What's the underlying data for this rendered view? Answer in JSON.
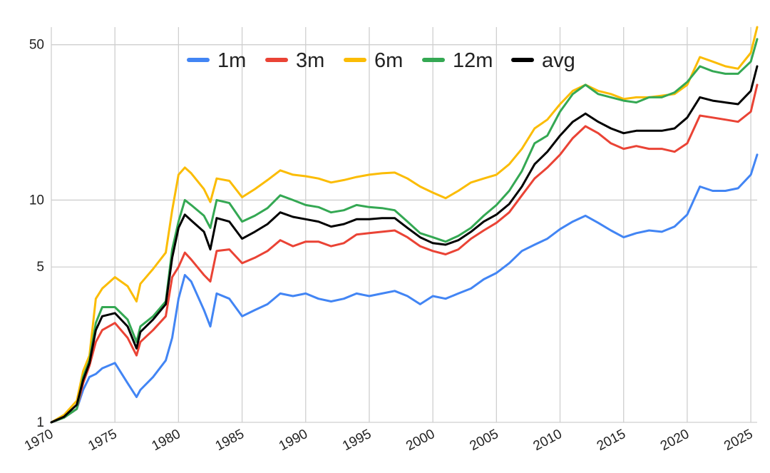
{
  "chart_data": {
    "type": "line",
    "title": "",
    "xlabel": "",
    "ylabel": "",
    "y_scale": "log",
    "xlim": [
      1970,
      2025.5
    ],
    "ylim": [
      1,
      60
    ],
    "x_ticks": [
      1970,
      1975,
      1980,
      1985,
      1990,
      1995,
      2000,
      2005,
      2010,
      2015,
      2020,
      2025
    ],
    "x_tick_labels": [
      "1970",
      "1975",
      "1980",
      "1985",
      "1990",
      "1995",
      "2000",
      "2005",
      "2010",
      "2015",
      "2020",
      "2025"
    ],
    "y_ticks": [
      1,
      5,
      10,
      50
    ],
    "y_tick_labels": [
      "1",
      "5",
      "10",
      "50"
    ],
    "grid": true,
    "legend_position": "top-center",
    "x": [
      1970,
      1971,
      1972,
      1972.5,
      1973,
      1973.5,
      1974,
      1975,
      1976,
      1976.7,
      1977,
      1978,
      1979,
      1979.5,
      1980,
      1980.5,
      1981,
      1982,
      1982.5,
      1983,
      1984,
      1985,
      1986,
      1987,
      1988,
      1989,
      1990,
      1991,
      1992,
      1993,
      1994,
      1995,
      1996,
      1997,
      1998,
      1999,
      2000,
      2001,
      2002,
      2003,
      2004,
      2005,
      2006,
      2007,
      2008,
      2009,
      2010,
      2011,
      2012,
      2013,
      2014,
      2015,
      2016,
      2017,
      2018,
      2019,
      2020,
      2021,
      2022,
      2023,
      2024,
      2025,
      2025.5
    ],
    "series": [
      {
        "name": "1m",
        "color": "#4285f4",
        "values": [
          1,
          1.05,
          1.15,
          1.4,
          1.6,
          1.65,
          1.75,
          1.85,
          1.5,
          1.3,
          1.4,
          1.6,
          1.9,
          2.4,
          3.6,
          4.6,
          4.3,
          3.2,
          2.7,
          3.8,
          3.6,
          3.0,
          3.2,
          3.4,
          3.8,
          3.7,
          3.8,
          3.6,
          3.5,
          3.6,
          3.8,
          3.7,
          3.8,
          3.9,
          3.7,
          3.4,
          3.7,
          3.6,
          3.8,
          4.0,
          4.4,
          4.7,
          5.2,
          5.9,
          6.3,
          6.7,
          7.4,
          8.0,
          8.5,
          7.9,
          7.3,
          6.8,
          7.1,
          7.3,
          7.2,
          7.6,
          8.6,
          11.5,
          11.0,
          11.0,
          11.3,
          13.0,
          16.0
        ]
      },
      {
        "name": "3m",
        "color": "#ea4335",
        "values": [
          1,
          1.05,
          1.15,
          1.5,
          1.8,
          2.3,
          2.6,
          2.8,
          2.4,
          2.0,
          2.3,
          2.6,
          3.0,
          4.5,
          5.0,
          5.8,
          5.4,
          4.6,
          4.3,
          5.9,
          6.0,
          5.2,
          5.5,
          5.9,
          6.6,
          6.2,
          6.5,
          6.5,
          6.2,
          6.4,
          7.0,
          7.1,
          7.2,
          7.3,
          6.8,
          6.2,
          5.9,
          5.7,
          6.0,
          6.7,
          7.3,
          7.9,
          8.8,
          10.5,
          12.5,
          14.0,
          16.0,
          19.0,
          21.5,
          20.0,
          18.0,
          17.0,
          17.5,
          17.0,
          17.0,
          16.5,
          18.0,
          24.0,
          23.5,
          23.0,
          22.5,
          25.0,
          33.0
        ]
      },
      {
        "name": "6m",
        "color": "#fbbc04",
        "values": [
          1,
          1.08,
          1.25,
          1.7,
          2.0,
          3.6,
          4.0,
          4.5,
          4.1,
          3.5,
          4.2,
          4.9,
          5.8,
          9.0,
          13.0,
          14.0,
          13.2,
          11.2,
          9.8,
          12.5,
          12.2,
          10.3,
          11.2,
          12.3,
          13.6,
          13.0,
          12.8,
          12.5,
          12.0,
          12.3,
          12.7,
          13.0,
          13.2,
          13.3,
          12.5,
          11.5,
          10.8,
          10.2,
          11.0,
          12.0,
          12.5,
          13.0,
          14.5,
          17.0,
          21.0,
          23.0,
          27.0,
          31.0,
          33.0,
          31.0,
          30.0,
          28.5,
          29.0,
          29.0,
          29.5,
          30.0,
          33.0,
          44.0,
          42.0,
          40.0,
          39.0,
          46.0,
          60.0
        ]
      },
      {
        "name": "12m",
        "color": "#34a853",
        "values": [
          1,
          1.05,
          1.15,
          1.6,
          1.9,
          2.8,
          3.3,
          3.3,
          2.9,
          2.3,
          2.7,
          3.0,
          3.5,
          6.0,
          8.0,
          10.0,
          9.5,
          8.5,
          7.5,
          10.0,
          9.7,
          8.0,
          8.5,
          9.2,
          10.5,
          10.0,
          9.5,
          9.3,
          8.8,
          9.0,
          9.5,
          9.3,
          9.2,
          9.0,
          8.0,
          7.1,
          6.8,
          6.5,
          6.9,
          7.5,
          8.5,
          9.5,
          11.0,
          13.5,
          18.0,
          19.5,
          25.0,
          30.0,
          33.0,
          30.0,
          29.0,
          28.0,
          27.5,
          29.0,
          29.0,
          30.5,
          34.0,
          40.0,
          38.0,
          37.0,
          37.0,
          42.0,
          53.0
        ]
      },
      {
        "name": "avg",
        "color": "#000000",
        "values": [
          1,
          1.06,
          1.2,
          1.55,
          1.85,
          2.6,
          3.0,
          3.1,
          2.7,
          2.15,
          2.55,
          2.9,
          3.4,
          5.5,
          7.5,
          8.6,
          8.1,
          7.2,
          6.0,
          8.3,
          8.0,
          6.7,
          7.2,
          7.8,
          8.8,
          8.4,
          8.2,
          8.0,
          7.6,
          7.8,
          8.2,
          8.2,
          8.3,
          8.3,
          7.5,
          6.8,
          6.4,
          6.3,
          6.6,
          7.2,
          8.0,
          8.6,
          9.6,
          11.5,
          14.5,
          16.5,
          19.5,
          22.5,
          24.5,
          22.5,
          21.0,
          20.0,
          20.5,
          20.5,
          20.5,
          21.0,
          23.5,
          29.0,
          28.0,
          27.5,
          27.0,
          31.0,
          40.0
        ]
      }
    ]
  }
}
